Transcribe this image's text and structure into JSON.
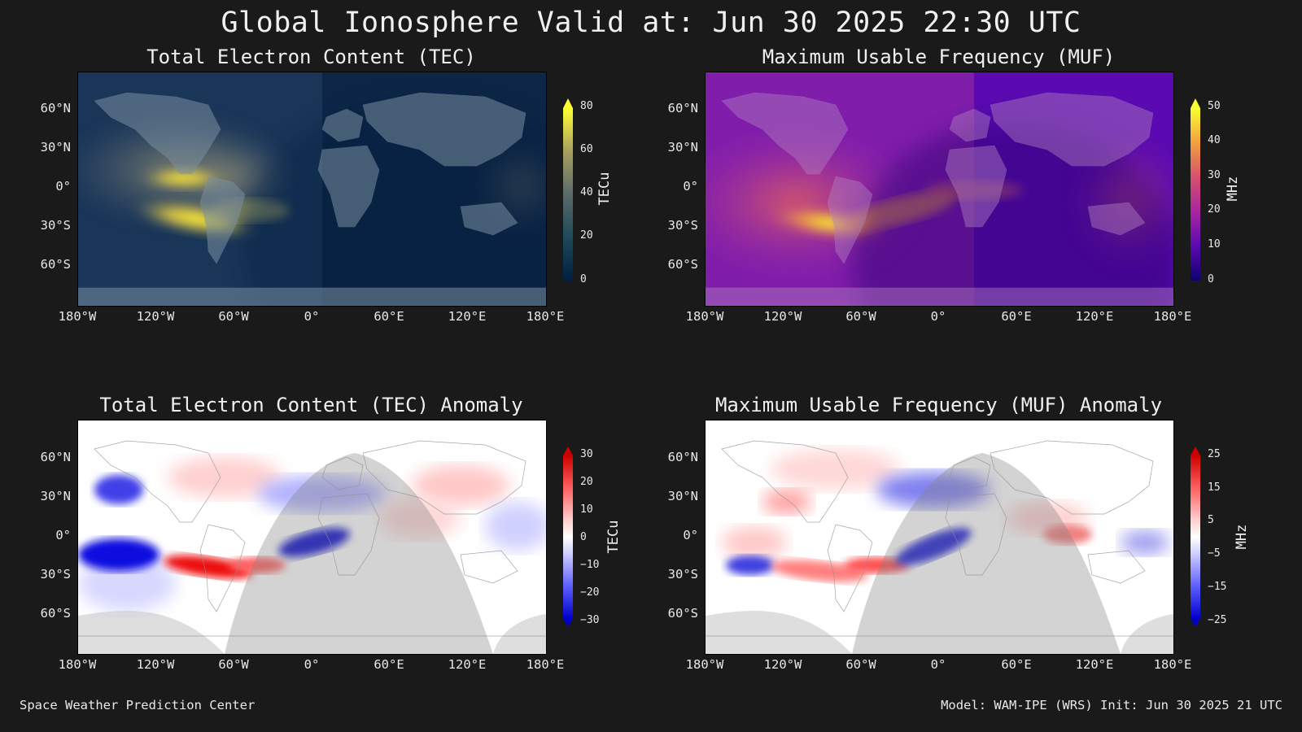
{
  "title": "Global Ionosphere Valid at: Jun 30 2025 22:30 UTC",
  "lat_labels": [
    "60°N",
    "30°N",
    "0°",
    "30°S",
    "60°S"
  ],
  "lon_labels": [
    "180°W",
    "120°W",
    "60°W",
    "0°",
    "60°E",
    "120°E",
    "180°E"
  ],
  "panels": {
    "tec": {
      "title": "Total Electron Content (TEC)",
      "colorbar_label": "TECu",
      "colorbar_ticks": [
        "80",
        "60",
        "40",
        "20",
        "0"
      ],
      "colorscale": [
        "#ffff33",
        "#a8a060",
        "#5a6a6a",
        "#1e4a5a",
        "#002040"
      ]
    },
    "muf": {
      "title": "Maximum Usable Frequency (MUF)",
      "colorbar_label": "MHz",
      "colorbar_ticks": [
        "50",
        "40",
        "30",
        "20",
        "10",
        "0"
      ],
      "colorscale": [
        "#f8ff30",
        "#f2a040",
        "#d8506a",
        "#a826a0",
        "#5a0ab0",
        "#10006e"
      ]
    },
    "tec_anomaly": {
      "title": "Total Electron Content (TEC) Anomaly",
      "colorbar_label": "TECu",
      "colorbar_ticks": [
        "30",
        "20",
        "10",
        "0",
        "−10",
        "−20",
        "−30"
      ],
      "colorscale": [
        "#cc0000",
        "#ff6060",
        "#ffd0d0",
        "#ffffff",
        "#d0d0ff",
        "#6060ff",
        "#0000cc"
      ]
    },
    "muf_anomaly": {
      "title": "Maximum Usable Frequency (MUF) Anomaly",
      "colorbar_label": "MHz",
      "colorbar_ticks": [
        "25",
        "15",
        "5",
        "−5",
        "−15",
        "−25"
      ],
      "colorscale": [
        "#cc0000",
        "#ff6060",
        "#ffd0d0",
        "#ffffff",
        "#d0d0ff",
        "#6060ff",
        "#0000cc"
      ]
    }
  },
  "footer": {
    "left": "Space Weather Prediction Center",
    "right": "Model: WAM-IPE (WRS) Init: Jun 30 2025 21 UTC"
  }
}
